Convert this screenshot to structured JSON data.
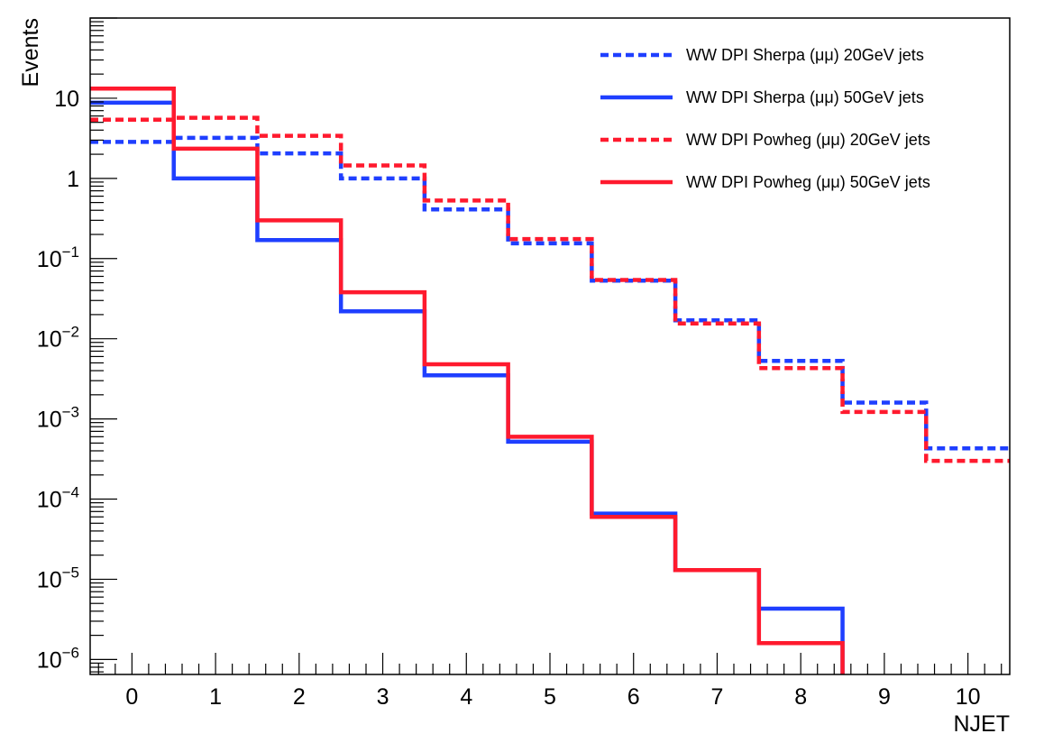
{
  "chart_data": {
    "type": "line",
    "subtype": "step-histogram",
    "xlabel": "NJET",
    "ylabel": "Events",
    "xlim": [
      -0.5,
      10.5
    ],
    "ylim": [
      6.5e-07,
      100
    ],
    "yscale": "log",
    "grid": false,
    "legend_position": "top-right",
    "x_ticks": [
      "0",
      "1",
      "2",
      "3",
      "4",
      "5",
      "6",
      "7",
      "8",
      "9",
      "10"
    ],
    "y_ticks": [
      {
        "value": 10,
        "base": "10",
        "exp": ""
      },
      {
        "value": 1,
        "base": "1",
        "exp": ""
      },
      {
        "value": 0.1,
        "base": "10",
        "exp": "−1"
      },
      {
        "value": 0.01,
        "base": "10",
        "exp": "−2"
      },
      {
        "value": 0.001,
        "base": "10",
        "exp": "−3"
      },
      {
        "value": 0.0001,
        "base": "10",
        "exp": "−4"
      },
      {
        "value": 1e-05,
        "base": "10",
        "exp": "−5"
      },
      {
        "value": 1e-06,
        "base": "10",
        "exp": "−6"
      }
    ],
    "bins": [
      0,
      1,
      2,
      3,
      4,
      5,
      6,
      7,
      8,
      9,
      10
    ],
    "series": [
      {
        "name": "WW DPI Sherpa (μμ) 20GeV jets",
        "color": "#1f3fff",
        "style": "dashed",
        "values": [
          2.85,
          3.2,
          2.05,
          1.0,
          0.41,
          0.155,
          0.053,
          0.017,
          0.0053,
          0.0016,
          0.00043
        ]
      },
      {
        "name": "WW DPI Sherpa (μμ) 50GeV jets",
        "color": "#1f3fff",
        "style": "solid",
        "values": [
          8.8,
          1.0,
          0.17,
          0.022,
          0.0035,
          0.00052,
          6.6e-05,
          1.3e-05,
          4.3e-06,
          null,
          null
        ]
      },
      {
        "name": "WW DPI Powheg (μμ) 20GeV jets",
        "color": "#ff1a2e",
        "style": "dashed",
        "values": [
          5.4,
          5.7,
          3.4,
          1.45,
          0.53,
          0.175,
          0.054,
          0.0155,
          0.0043,
          0.00122,
          0.0003
        ]
      },
      {
        "name": "WW DPI Powheg (μμ) 50GeV jets",
        "color": "#ff1a2e",
        "style": "solid",
        "values": [
          13.2,
          2.35,
          0.3,
          0.038,
          0.0048,
          0.0006,
          6e-05,
          1.3e-05,
          1.6e-06,
          null,
          null
        ]
      }
    ]
  }
}
